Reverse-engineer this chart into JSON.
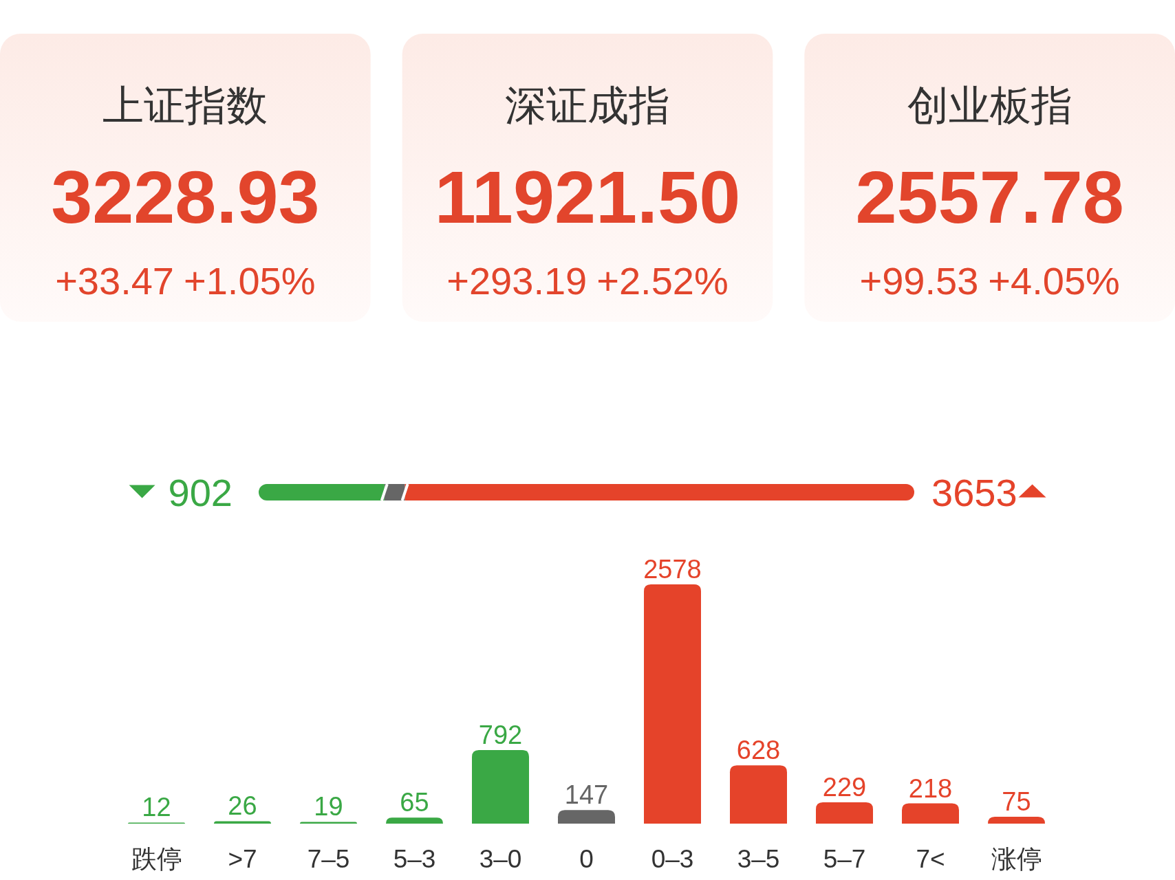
{
  "chart_data": [
    {
      "type": "other",
      "title": "上证指数",
      "annotations": [
        "3228.93",
        "+33.47",
        "+1.05%"
      ]
    },
    {
      "type": "other",
      "title": "深证成指",
      "annotations": [
        "11921.50",
        "+293.19",
        "+2.52%"
      ]
    },
    {
      "type": "other",
      "title": "创业板指",
      "annotations": [
        "2557.78",
        "+99.53",
        "+4.05%"
      ]
    },
    {
      "type": "bar",
      "orientation": "horizontal",
      "stacked": true,
      "categories": [
        null
      ],
      "series": [
        {
          "color": "#3aa845",
          "values": [
            902
          ],
          "value_labels": [
            "902"
          ]
        },
        {
          "color": "#666666",
          "values": [
            147
          ],
          "value_labels": [
            null
          ]
        },
        {
          "color": "#e5432a",
          "values": [
            3653
          ],
          "value_labels": [
            "3653"
          ]
        }
      ]
    },
    {
      "type": "bar",
      "categories": [
        "跌停",
        ">7",
        "7–5",
        "5–3",
        "3–0",
        "0",
        "0–3",
        "3–5",
        "5–7",
        "7<",
        "涨停"
      ],
      "values": [
        12,
        26,
        19,
        65,
        792,
        147,
        2578,
        628,
        229,
        218,
        75
      ],
      "colors": [
        "#3aa845",
        "#3aa845",
        "#3aa845",
        "#3aa845",
        "#3aa845",
        "#666666",
        "#e5432a",
        "#e5432a",
        "#e5432a",
        "#e5432a",
        "#e5432a"
      ],
      "data_labels": true
    }
  ]
}
